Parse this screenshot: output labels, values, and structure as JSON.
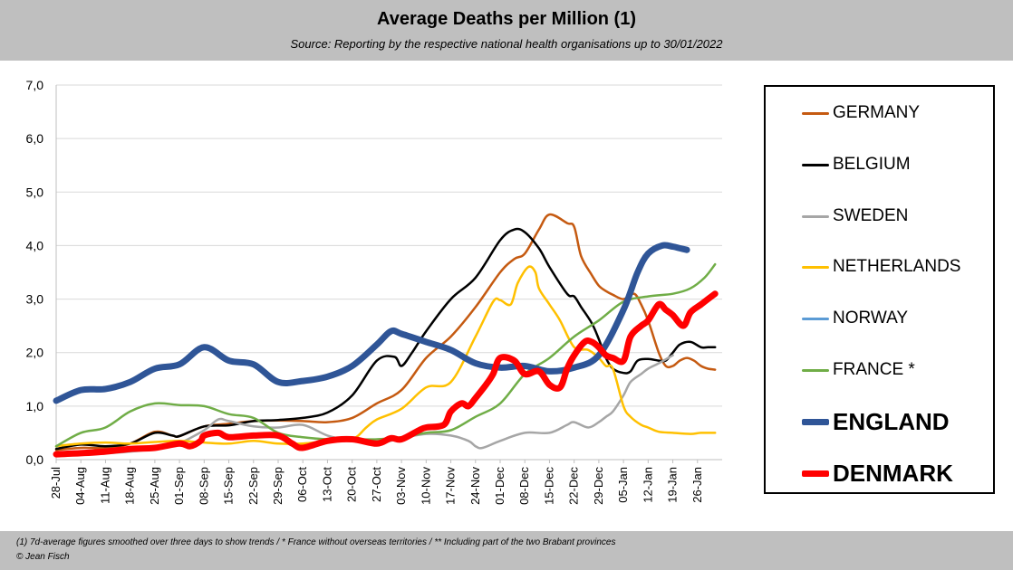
{
  "header": {
    "title": "Average Deaths per Million (1)",
    "subtitle": "Source: Reporting by the respective national health organisations up to 30/01/2022"
  },
  "footer": {
    "note": "(1) 7d-average figures smoothed over three days to show trends / * France without overseas territories / ** Including part of the two Brabant provinces",
    "credit": "© Jean Fisch"
  },
  "chart_data": {
    "type": "line",
    "title": "Average Deaths per Million (1)",
    "xlabel": "",
    "ylabel": "",
    "ylim": [
      0,
      7
    ],
    "yticks": [
      "0,0",
      "1,0",
      "2,0",
      "3,0",
      "4,0",
      "5,0",
      "6,0",
      "7,0"
    ],
    "grid": true,
    "legend_position": "right",
    "x_range_days": [
      0,
      189
    ],
    "x_ticks": [
      {
        "label": "28-Jul",
        "day": 0
      },
      {
        "label": "04-Aug",
        "day": 7
      },
      {
        "label": "11-Aug",
        "day": 14
      },
      {
        "label": "18-Aug",
        "day": 21
      },
      {
        "label": "25-Aug",
        "day": 28
      },
      {
        "label": "01-Sep",
        "day": 35
      },
      {
        "label": "08-Sep",
        "day": 42
      },
      {
        "label": "15-Sep",
        "day": 49
      },
      {
        "label": "22-Sep",
        "day": 56
      },
      {
        "label": "29-Sep",
        "day": 63
      },
      {
        "label": "06-Oct",
        "day": 70
      },
      {
        "label": "13-Oct",
        "day": 77
      },
      {
        "label": "20-Oct",
        "day": 84
      },
      {
        "label": "27-Oct",
        "day": 91
      },
      {
        "label": "03-Nov",
        "day": 98
      },
      {
        "label": "10-Nov",
        "day": 105
      },
      {
        "label": "17-Nov",
        "day": 112
      },
      {
        "label": "24-Nov",
        "day": 119
      },
      {
        "label": "01-Dec",
        "day": 126
      },
      {
        "label": "08-Dec",
        "day": 133
      },
      {
        "label": "15-Dec",
        "day": 140
      },
      {
        "label": "22-Dec",
        "day": 147
      },
      {
        "label": "29-Dec",
        "day": 154
      },
      {
        "label": "05-Jan",
        "day": 161
      },
      {
        "label": "12-Jan",
        "day": 168
      },
      {
        "label": "19-Jan",
        "day": 175
      },
      {
        "label": "26-Jan",
        "day": 182
      }
    ],
    "series": [
      {
        "name": "GERMANY",
        "color": "#c55a11",
        "width": 2.5,
        "bold": false,
        "x": [
          0,
          7,
          14,
          21,
          28,
          33,
          35,
          42,
          49,
          56,
          63,
          70,
          77,
          84,
          91,
          98,
          105,
          112,
          119,
          126,
          130,
          133,
          137,
          140,
          145,
          147,
          149,
          152,
          154,
          156,
          158,
          161,
          164,
          166,
          168,
          171,
          173,
          175,
          177,
          179,
          181,
          183,
          185,
          187
        ],
        "y": [
          0.18,
          0.22,
          0.22,
          0.3,
          0.52,
          0.45,
          0.44,
          0.62,
          0.67,
          0.72,
          0.73,
          0.72,
          0.7,
          0.78,
          1.05,
          1.3,
          1.9,
          2.3,
          2.85,
          3.5,
          3.75,
          3.85,
          4.3,
          4.58,
          4.42,
          4.35,
          3.8,
          3.45,
          3.25,
          3.15,
          3.08,
          3.0,
          3.1,
          2.9,
          2.6,
          2.0,
          1.75,
          1.75,
          1.85,
          1.9,
          1.85,
          1.75,
          1.7,
          1.68
        ]
      },
      {
        "name": "BELGIUM",
        "color": "#000000",
        "width": 2.5,
        "bold": false,
        "x": [
          0,
          7,
          14,
          21,
          28,
          33,
          35,
          42,
          49,
          56,
          63,
          70,
          77,
          84,
          91,
          96,
          98,
          101,
          105,
          112,
          119,
          126,
          130,
          133,
          137,
          140,
          145,
          147,
          149,
          152,
          154,
          156,
          158,
          161,
          163,
          165,
          168,
          171,
          173,
          175,
          177,
          180,
          183,
          185,
          187
        ],
        "y": [
          0.2,
          0.28,
          0.25,
          0.3,
          0.5,
          0.45,
          0.44,
          0.62,
          0.64,
          0.72,
          0.74,
          0.78,
          0.88,
          1.2,
          1.85,
          1.92,
          1.75,
          2.0,
          2.4,
          3.0,
          3.4,
          4.1,
          4.3,
          4.25,
          3.95,
          3.6,
          3.1,
          3.05,
          2.85,
          2.55,
          2.25,
          1.9,
          1.7,
          1.62,
          1.65,
          1.85,
          1.88,
          1.85,
          1.85,
          2.0,
          2.15,
          2.2,
          2.1,
          2.1,
          2.1
        ]
      },
      {
        "name": "SWEDEN",
        "color": "#a6a6a6",
        "width": 2.5,
        "bold": false,
        "x": [
          0,
          7,
          14,
          21,
          28,
          33,
          35,
          42,
          46,
          49,
          56,
          63,
          70,
          77,
          84,
          91,
          98,
          105,
          112,
          117,
          119,
          121,
          126,
          133,
          140,
          145,
          147,
          151,
          154,
          156,
          158,
          161,
          163,
          166,
          168,
          171,
          175
        ],
        "y": [
          0.12,
          0.12,
          0.12,
          0.15,
          0.2,
          0.25,
          0.3,
          0.55,
          0.75,
          0.72,
          0.62,
          0.6,
          0.65,
          0.45,
          0.35,
          0.3,
          0.4,
          0.48,
          0.45,
          0.35,
          0.25,
          0.22,
          0.35,
          0.5,
          0.5,
          0.65,
          0.7,
          0.6,
          0.7,
          0.8,
          0.9,
          1.2,
          1.45,
          1.6,
          1.7,
          1.8,
          1.95
        ]
      },
      {
        "name": "NETHERLANDS",
        "color": "#ffc000",
        "width": 2.5,
        "bold": false,
        "x": [
          0,
          7,
          14,
          21,
          28,
          35,
          42,
          49,
          56,
          63,
          70,
          77,
          84,
          88,
          91,
          98,
          105,
          112,
          119,
          124,
          126,
          129,
          131,
          134,
          136,
          137,
          140,
          143,
          147,
          151,
          154,
          156,
          158,
          161,
          163,
          166,
          168,
          171,
          175,
          180,
          183,
          187
        ],
        "y": [
          0.25,
          0.3,
          0.32,
          0.3,
          0.33,
          0.35,
          0.32,
          0.3,
          0.35,
          0.3,
          0.3,
          0.35,
          0.38,
          0.6,
          0.75,
          0.95,
          1.35,
          1.45,
          2.3,
          2.95,
          2.98,
          2.9,
          3.3,
          3.6,
          3.5,
          3.2,
          2.9,
          2.6,
          2.1,
          2.05,
          1.9,
          1.75,
          1.7,
          1.0,
          0.8,
          0.65,
          0.6,
          0.52,
          0.5,
          0.48,
          0.5,
          0.5
        ]
      },
      {
        "name": "NORWAY",
        "color": "#5b9bd5",
        "width": 2.5,
        "bold": false,
        "x": [],
        "y": []
      },
      {
        "name": "FRANCE *",
        "color": "#70ad47",
        "width": 2.5,
        "bold": false,
        "x": [
          0,
          7,
          14,
          21,
          28,
          35,
          42,
          49,
          56,
          63,
          70,
          77,
          84,
          91,
          98,
          105,
          112,
          119,
          126,
          133,
          140,
          147,
          154,
          161,
          168,
          175,
          180,
          184,
          187
        ],
        "y": [
          0.25,
          0.5,
          0.6,
          0.9,
          1.05,
          1.02,
          1.0,
          0.85,
          0.78,
          0.5,
          0.42,
          0.38,
          0.38,
          0.38,
          0.42,
          0.5,
          0.55,
          0.8,
          1.05,
          1.6,
          1.9,
          2.3,
          2.6,
          2.95,
          3.05,
          3.1,
          3.2,
          3.4,
          3.65
        ]
      },
      {
        "name": "ENGLAND",
        "color": "#2f5597",
        "width": 7,
        "bold": true,
        "x": [
          0,
          7,
          14,
          21,
          28,
          35,
          42,
          49,
          56,
          63,
          70,
          77,
          84,
          91,
          95,
          98,
          105,
          112,
          119,
          126,
          133,
          140,
          147,
          154,
          161,
          165,
          168,
          172,
          175,
          177,
          179
        ],
        "y": [
          1.1,
          1.3,
          1.32,
          1.45,
          1.7,
          1.78,
          2.1,
          1.85,
          1.78,
          1.45,
          1.47,
          1.55,
          1.75,
          2.15,
          2.4,
          2.35,
          2.2,
          2.05,
          1.8,
          1.72,
          1.75,
          1.65,
          1.72,
          1.95,
          2.8,
          3.5,
          3.85,
          4.0,
          3.98,
          3.95,
          3.92
        ]
      },
      {
        "name": "DENMARK",
        "color": "#ff0000",
        "width": 7,
        "bold": true,
        "x": [
          0,
          7,
          14,
          21,
          28,
          35,
          38,
          41,
          42,
          46,
          49,
          56,
          63,
          67,
          70,
          77,
          84,
          91,
          95,
          98,
          103,
          105,
          110,
          112,
          115,
          117,
          119,
          122,
          124,
          126,
          130,
          133,
          137,
          140,
          143,
          145,
          147,
          150,
          152,
          154,
          156,
          158,
          161,
          163,
          166,
          168,
          171,
          173,
          175,
          178,
          180,
          183,
          187
        ],
        "y": [
          0.1,
          0.12,
          0.15,
          0.2,
          0.22,
          0.3,
          0.25,
          0.35,
          0.45,
          0.5,
          0.42,
          0.45,
          0.45,
          0.3,
          0.22,
          0.35,
          0.38,
          0.3,
          0.4,
          0.38,
          0.55,
          0.6,
          0.65,
          0.9,
          1.05,
          1.0,
          1.15,
          1.4,
          1.6,
          1.9,
          1.85,
          1.6,
          1.65,
          1.4,
          1.35,
          1.7,
          1.95,
          2.2,
          2.2,
          2.1,
          1.95,
          1.9,
          1.85,
          2.3,
          2.5,
          2.6,
          2.9,
          2.8,
          2.7,
          2.5,
          2.75,
          2.9,
          3.1
        ]
      }
    ]
  }
}
